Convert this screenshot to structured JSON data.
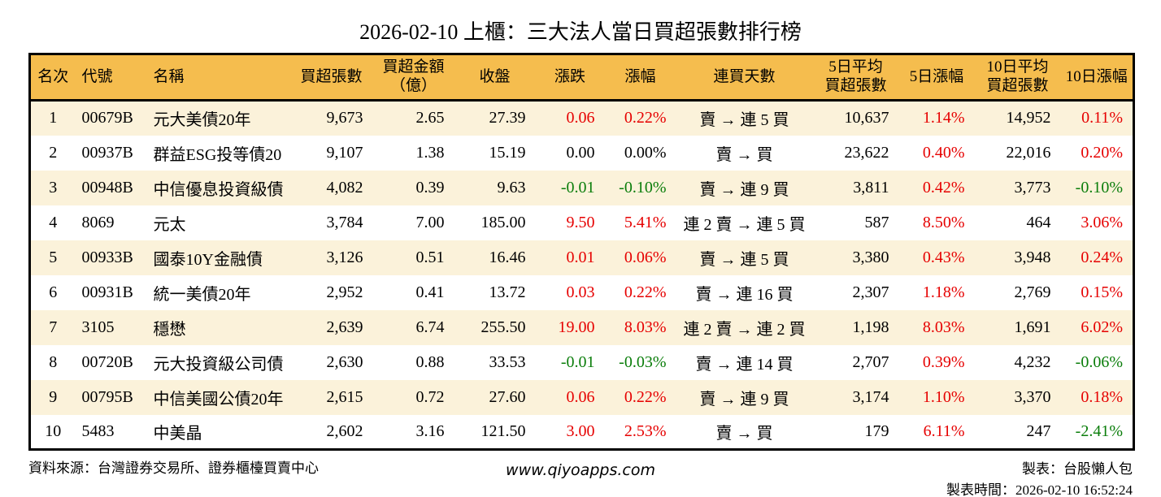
{
  "title": "2026-02-10 上櫃：三大法人當日買超張數排行榜",
  "colors": {
    "header_bg": "#f5bd4e",
    "stripe_bg": "#fbf2da",
    "up": "#e60000",
    "down": "#0a7d0a",
    "border": "#000000",
    "text": "#000000"
  },
  "table": {
    "columns": [
      {
        "key": "rank",
        "label": "名次",
        "align": "ac",
        "header_align": "ac"
      },
      {
        "key": "code",
        "label": "代號",
        "align": "al",
        "header_align": "al"
      },
      {
        "key": "name",
        "label": "名稱",
        "align": "al",
        "header_align": "al"
      },
      {
        "key": "net_lots",
        "label": "買超張數",
        "align": "ar",
        "header_align": "ac"
      },
      {
        "key": "amount",
        "label": "買超金額\n（億）",
        "align": "ar",
        "header_align": "ac"
      },
      {
        "key": "close",
        "label": "收盤",
        "align": "ar",
        "header_align": "ac"
      },
      {
        "key": "change",
        "label": "漲跌",
        "align": "ar",
        "header_align": "ac"
      },
      {
        "key": "change_pct",
        "label": "漲幅",
        "align": "ar",
        "header_align": "ac"
      },
      {
        "key": "streak",
        "label": "連買天數",
        "align": "ac",
        "header_align": "ac"
      },
      {
        "key": "avg5",
        "label": "5日平均\n買超張數",
        "align": "ar",
        "header_align": "ac"
      },
      {
        "key": "pct5",
        "label": "5日漲幅",
        "align": "ar",
        "header_align": "ac"
      },
      {
        "key": "avg10",
        "label": "10日平均\n買超張數",
        "align": "ar",
        "header_align": "ac"
      },
      {
        "key": "pct10",
        "label": "10日漲幅",
        "align": "ar",
        "header_align": "ac"
      }
    ],
    "rows": [
      {
        "rank": "1",
        "code": "00679B",
        "name": "元大美債20年",
        "net_lots": "9,673",
        "amount": "2.65",
        "close": "27.39",
        "change": {
          "v": "0.06",
          "c": "up"
        },
        "change_pct": {
          "v": "0.22%",
          "c": "up"
        },
        "streak": "賣 → 連 5 買",
        "avg5": "10,637",
        "pct5": {
          "v": "1.14%",
          "c": "up"
        },
        "avg10": "14,952",
        "pct10": {
          "v": "0.11%",
          "c": "up"
        }
      },
      {
        "rank": "2",
        "code": "00937B",
        "name": "群益ESG投等債20",
        "net_lots": "9,107",
        "amount": "1.38",
        "close": "15.19",
        "change": {
          "v": "0.00",
          "c": "flat"
        },
        "change_pct": {
          "v": "0.00%",
          "c": "flat"
        },
        "streak": "賣 → 買",
        "avg5": "23,622",
        "pct5": {
          "v": "0.40%",
          "c": "up"
        },
        "avg10": "22,016",
        "pct10": {
          "v": "0.20%",
          "c": "up"
        }
      },
      {
        "rank": "3",
        "code": "00948B",
        "name": "中信優息投資級債",
        "net_lots": "4,082",
        "amount": "0.39",
        "close": "9.63",
        "change": {
          "v": "-0.01",
          "c": "down"
        },
        "change_pct": {
          "v": "-0.10%",
          "c": "down"
        },
        "streak": "賣 → 連 9 買",
        "avg5": "3,811",
        "pct5": {
          "v": "0.42%",
          "c": "up"
        },
        "avg10": "3,773",
        "pct10": {
          "v": "-0.10%",
          "c": "down"
        }
      },
      {
        "rank": "4",
        "code": "8069",
        "name": "元太",
        "net_lots": "3,784",
        "amount": "7.00",
        "close": "185.00",
        "change": {
          "v": "9.50",
          "c": "up"
        },
        "change_pct": {
          "v": "5.41%",
          "c": "up"
        },
        "streak": "連 2 賣 → 連 5 買",
        "avg5": "587",
        "pct5": {
          "v": "8.50%",
          "c": "up"
        },
        "avg10": "464",
        "pct10": {
          "v": "3.06%",
          "c": "up"
        }
      },
      {
        "rank": "5",
        "code": "00933B",
        "name": "國泰10Y金融債",
        "net_lots": "3,126",
        "amount": "0.51",
        "close": "16.46",
        "change": {
          "v": "0.01",
          "c": "up"
        },
        "change_pct": {
          "v": "0.06%",
          "c": "up"
        },
        "streak": "賣 → 連 5 買",
        "avg5": "3,380",
        "pct5": {
          "v": "0.43%",
          "c": "up"
        },
        "avg10": "3,948",
        "pct10": {
          "v": "0.24%",
          "c": "up"
        }
      },
      {
        "rank": "6",
        "code": "00931B",
        "name": "統一美債20年",
        "net_lots": "2,952",
        "amount": "0.41",
        "close": "13.72",
        "change": {
          "v": "0.03",
          "c": "up"
        },
        "change_pct": {
          "v": "0.22%",
          "c": "up"
        },
        "streak": "賣 → 連 16 買",
        "avg5": "2,307",
        "pct5": {
          "v": "1.18%",
          "c": "up"
        },
        "avg10": "2,769",
        "pct10": {
          "v": "0.15%",
          "c": "up"
        }
      },
      {
        "rank": "7",
        "code": "3105",
        "name": "穩懋",
        "net_lots": "2,639",
        "amount": "6.74",
        "close": "255.50",
        "change": {
          "v": "19.00",
          "c": "up"
        },
        "change_pct": {
          "v": "8.03%",
          "c": "up"
        },
        "streak": "連 2 賣 → 連 2 買",
        "avg5": "1,198",
        "pct5": {
          "v": "8.03%",
          "c": "up"
        },
        "avg10": "1,691",
        "pct10": {
          "v": "6.02%",
          "c": "up"
        }
      },
      {
        "rank": "8",
        "code": "00720B",
        "name": "元大投資級公司債",
        "net_lots": "2,630",
        "amount": "0.88",
        "close": "33.53",
        "change": {
          "v": "-0.01",
          "c": "down"
        },
        "change_pct": {
          "v": "-0.03%",
          "c": "down"
        },
        "streak": "賣 → 連 14 買",
        "avg5": "2,707",
        "pct5": {
          "v": "0.39%",
          "c": "up"
        },
        "avg10": "4,232",
        "pct10": {
          "v": "-0.06%",
          "c": "down"
        }
      },
      {
        "rank": "9",
        "code": "00795B",
        "name": "中信美國公債20年",
        "net_lots": "2,615",
        "amount": "0.72",
        "close": "27.60",
        "change": {
          "v": "0.06",
          "c": "up"
        },
        "change_pct": {
          "v": "0.22%",
          "c": "up"
        },
        "streak": "賣 → 連 9 買",
        "avg5": "3,174",
        "pct5": {
          "v": "1.10%",
          "c": "up"
        },
        "avg10": "3,370",
        "pct10": {
          "v": "0.18%",
          "c": "up"
        }
      },
      {
        "rank": "10",
        "code": "5483",
        "name": "中美晶",
        "net_lots": "2,602",
        "amount": "3.16",
        "close": "121.50",
        "change": {
          "v": "3.00",
          "c": "up"
        },
        "change_pct": {
          "v": "2.53%",
          "c": "up"
        },
        "streak": "賣 → 買",
        "avg5": "179",
        "pct5": {
          "v": "6.11%",
          "c": "up"
        },
        "avg10": "247",
        "pct10": {
          "v": "-2.41%",
          "c": "down"
        }
      }
    ]
  },
  "footer": {
    "source": "資料來源：台灣證券交易所、證券櫃檯買賣中心",
    "site": "www.qiyoapps.com",
    "maker": "製表：台股懶人包",
    "made_time": "製表時間：2026-02-10 16:52:24"
  }
}
